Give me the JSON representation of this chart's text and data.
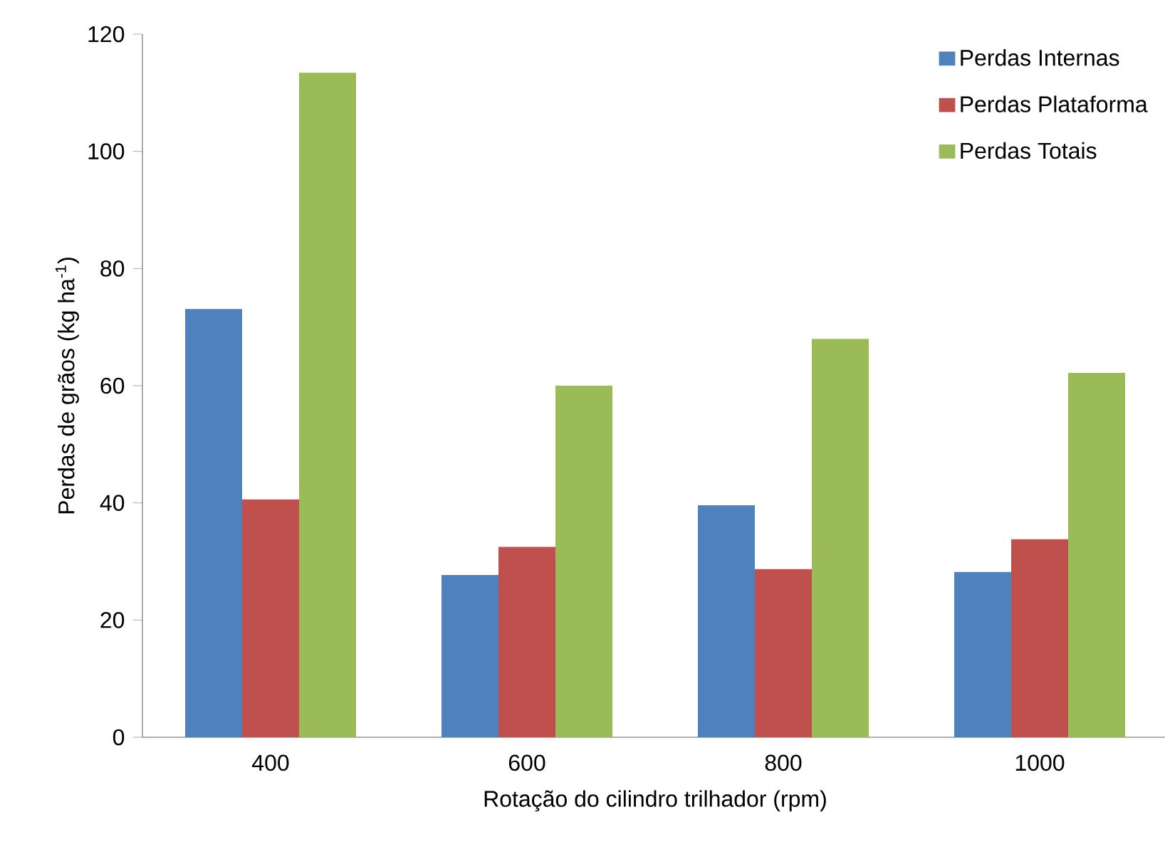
{
  "chart_data": {
    "type": "bar",
    "xlabel": "Rotação do cilindro trilhador (rpm)",
    "ylabel": "Perdas de grãos (kg ha$^{-1}$)",
    "categories": [
      "400",
      "600",
      "800",
      "1000"
    ],
    "series": [
      {
        "name": "Perdas Internas",
        "color": "#4f81bd",
        "values": [
          73.1,
          27.7,
          39.6,
          28.2
        ]
      },
      {
        "name": "Perdas Plataforma",
        "color": "#c0504d",
        "values": [
          40.6,
          32.5,
          28.7,
          33.8
        ]
      },
      {
        "name": "Perdas Totais",
        "color": "#9bbb59",
        "values": [
          113.4,
          60.0,
          68.0,
          62.2
        ]
      }
    ],
    "ylim": [
      0,
      120
    ],
    "yticks": [
      0,
      20,
      40,
      60,
      80,
      100,
      120
    ],
    "grid": false,
    "legend": "top right"
  }
}
